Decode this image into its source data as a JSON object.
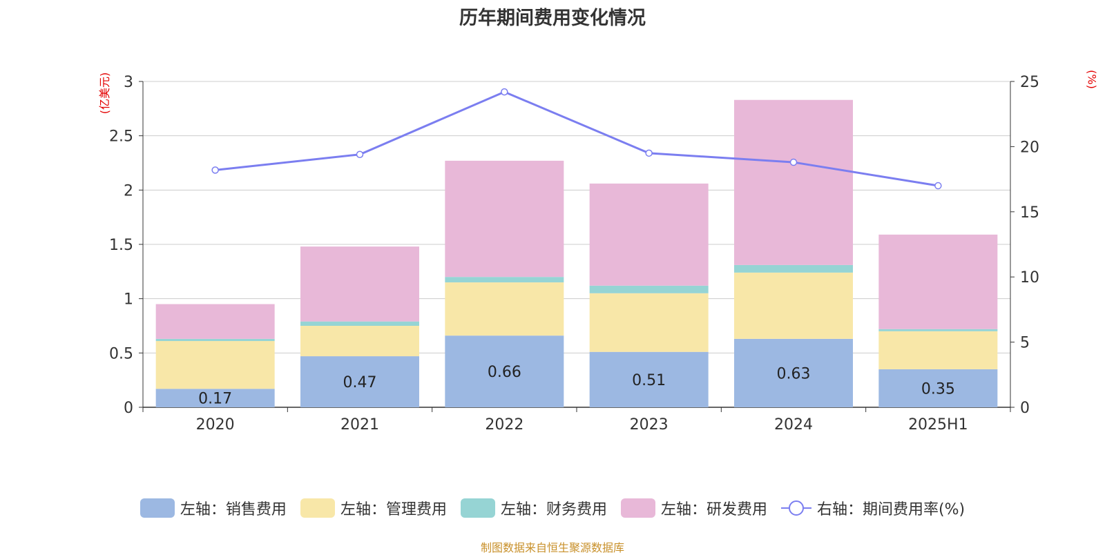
{
  "title": "历年期间费用变化情况",
  "left_axis_unit": "(亿美元)",
  "right_axis_unit": "(%)",
  "footer": "制图数据来自恒生聚源数据库",
  "colors": {
    "sales": "#9cb8e2",
    "admin": "#f8e7a8",
    "finance": "#96d4d4",
    "rd": "#e8b8d8",
    "rate": "#7b7ef0",
    "grid": "#cccccc",
    "axis": "#333333"
  },
  "legend": [
    {
      "label": "左轴：销售费用",
      "type": "bar",
      "color": "#9cb8e2"
    },
    {
      "label": "左轴：管理费用",
      "type": "bar",
      "color": "#f8e7a8"
    },
    {
      "label": "左轴：财务费用",
      "type": "bar",
      "color": "#96d4d4"
    },
    {
      "label": "左轴：研发费用",
      "type": "bar",
      "color": "#e8b8d8"
    },
    {
      "label": "右轴：期间费用率(%)",
      "type": "line",
      "color": "#7b7ef0"
    }
  ],
  "chart_data": {
    "type": "bar",
    "categories": [
      "2020",
      "2021",
      "2022",
      "2023",
      "2024",
      "2025H1"
    ],
    "left_axis": {
      "min": 0,
      "max": 3,
      "ticks": [
        "0",
        "0.5",
        "1",
        "1.5",
        "2",
        "2.5",
        "3"
      ]
    },
    "right_axis": {
      "min": 0,
      "max": 25,
      "ticks": [
        "0",
        "5",
        "10",
        "15",
        "20",
        "25"
      ]
    },
    "series": [
      {
        "name": "左轴：销售费用",
        "axis": "left",
        "type": "stacked-bar",
        "values": [
          0.17,
          0.47,
          0.66,
          0.51,
          0.63,
          0.35
        ],
        "labels": [
          "0.17",
          "0.47",
          "0.66",
          "0.51",
          "0.63",
          "0.35"
        ]
      },
      {
        "name": "左轴：管理费用",
        "axis": "left",
        "type": "stacked-bar",
        "values": [
          0.44,
          0.28,
          0.49,
          0.54,
          0.61,
          0.35
        ]
      },
      {
        "name": "左轴：财务费用",
        "axis": "left",
        "type": "stacked-bar",
        "values": [
          0.02,
          0.04,
          0.05,
          0.07,
          0.07,
          0.02
        ]
      },
      {
        "name": "左轴：研发费用",
        "axis": "left",
        "type": "stacked-bar",
        "values": [
          0.32,
          0.69,
          1.07,
          0.94,
          1.52,
          0.87
        ]
      },
      {
        "name": "右轴：期间费用率(%)",
        "axis": "right",
        "type": "line",
        "values": [
          18.2,
          19.4,
          24.2,
          19.5,
          18.8,
          17.0
        ]
      }
    ],
    "grid": true,
    "legend_position": "bottom"
  }
}
